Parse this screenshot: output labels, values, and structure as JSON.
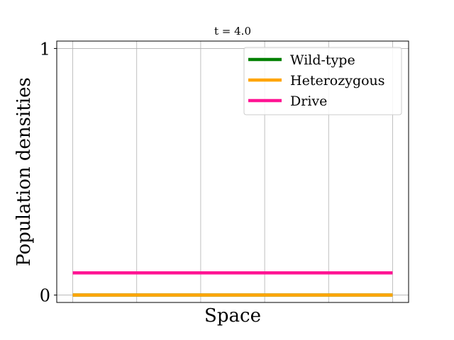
{
  "chart_data": {
    "type": "line",
    "title": "t = 4.0",
    "xlabel": "Space",
    "ylabel": "Population densities",
    "xlim": [
      -0.05,
      1.05
    ],
    "ylim": [
      -0.03,
      1.03
    ],
    "xgrid": [
      0,
      0.2,
      0.4,
      0.6,
      0.8,
      1.0
    ],
    "yticks": [
      0,
      1
    ],
    "ytick_labels": [
      "0",
      "1"
    ],
    "grid": true,
    "legend_position": "top-right",
    "series": [
      {
        "name": "Wild-type",
        "color": "#008000",
        "x": [
          0,
          1
        ],
        "y": [
          0.0,
          0.0
        ]
      },
      {
        "name": "Heterozygous",
        "color": "#FFA500",
        "x": [
          0,
          1
        ],
        "y": [
          0.0,
          0.0
        ]
      },
      {
        "name": "Drive",
        "color": "#FF1493",
        "x": [
          0,
          1
        ],
        "y": [
          0.09,
          0.09
        ]
      }
    ]
  }
}
